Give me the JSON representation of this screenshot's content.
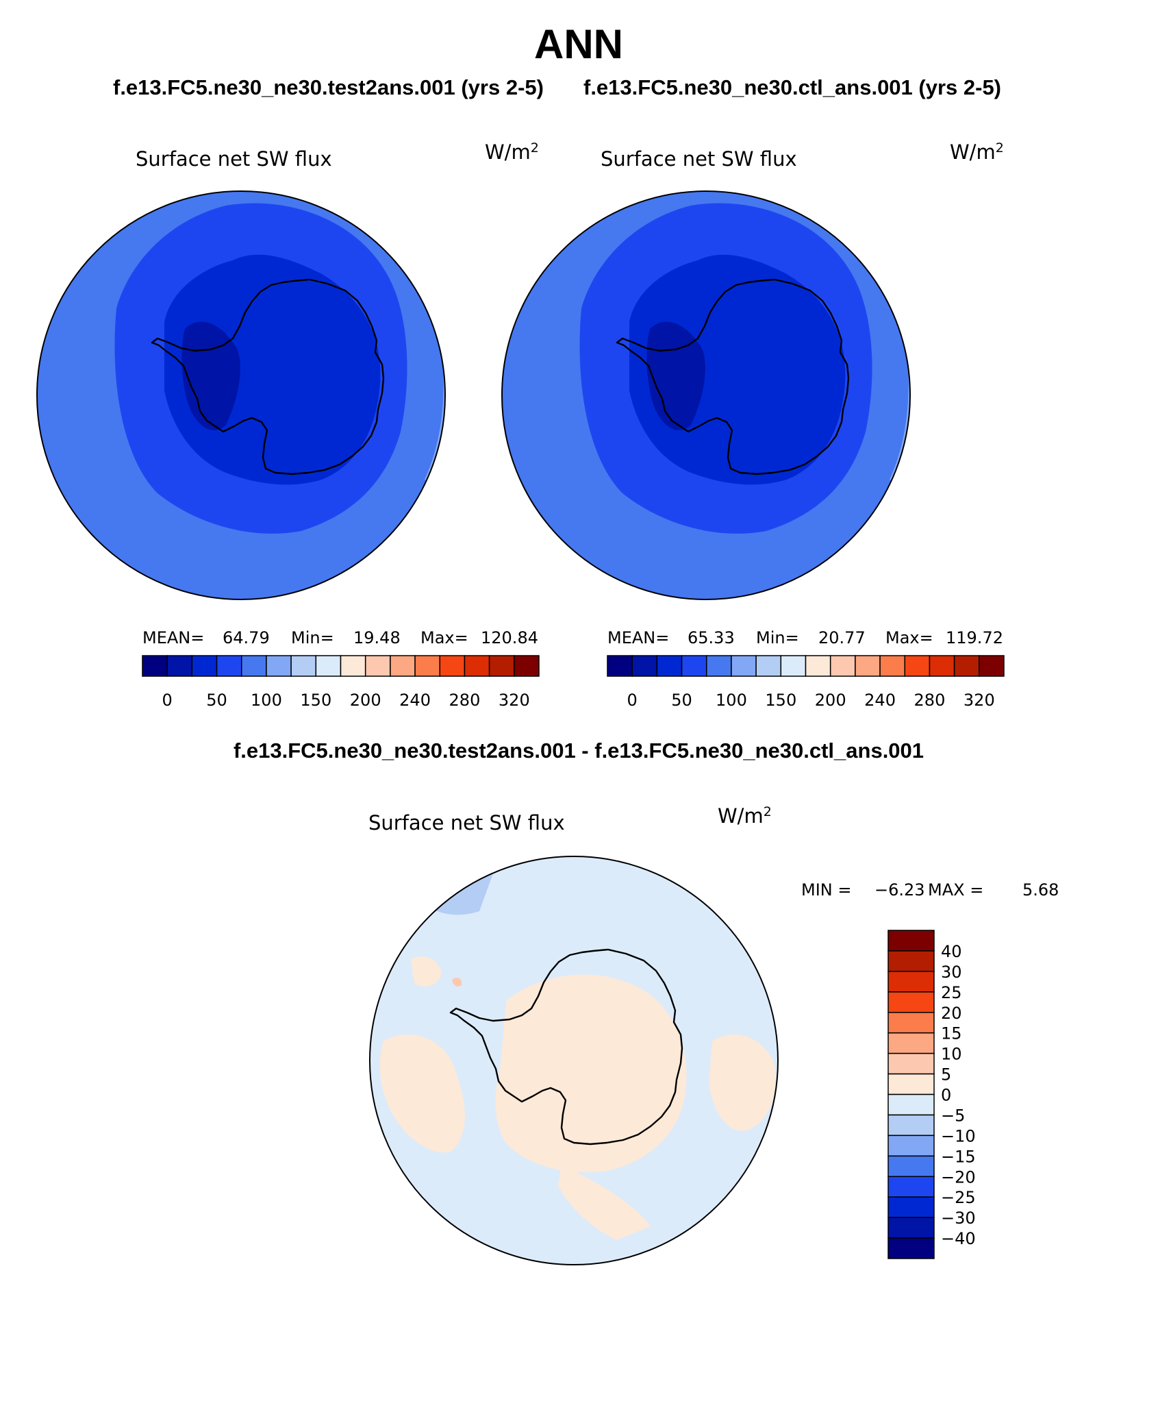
{
  "page": {
    "title": "ANN",
    "case_a": "f.e13.FC5.ne30_ne30.test2ans.001 (yrs 2-5)",
    "case_b": "f.e13.FC5.ne30_ne30.ctl_ans.001 (yrs 2-5)",
    "diff_title": "f.e13.FC5.ne30_ne30.test2ans.001 - f.e13.FC5.ne30_ne30.ctl_ans.001"
  },
  "panels": [
    {
      "id": "test",
      "variable": "Surface net SW flux",
      "units_base": "W/m",
      "units_exp": "2",
      "mean_label": "MEAN=",
      "mean": "64.79",
      "min_label": "Min=",
      "min": "19.48",
      "max_label": "Max=",
      "max": "120.84"
    },
    {
      "id": "control",
      "variable": "Surface net SW flux",
      "units_base": "W/m",
      "units_exp": "2",
      "mean_label": "MEAN=",
      "mean": "65.33",
      "min_label": "Min=",
      "min": "20.77",
      "max_label": "Max=",
      "max": "119.72"
    }
  ],
  "difference_panel": {
    "variable": "Surface net SW flux",
    "units_base": "W/m",
    "units_exp": "2",
    "min_label": "MIN =",
    "min": "−6.23",
    "max_label": "MAX =",
    "max": "5.68"
  },
  "colorbars": {
    "absolute": {
      "colors": [
        "#000080",
        "#0014a8",
        "#0028d2",
        "#1e46f0",
        "#4678f0",
        "#82a8f5",
        "#b4cdf5",
        "#dcebfa",
        "#fde9d8",
        "#fcc8b0",
        "#fca882",
        "#fa7d4b",
        "#f54614",
        "#dc2d05",
        "#b41e00",
        "#7d0000"
      ],
      "tick_labels": [
        "0",
        "50",
        "100",
        "150",
        "200",
        "240",
        "280",
        "320"
      ]
    },
    "difference": {
      "colors": [
        "#7d0000",
        "#b41e00",
        "#dc2d05",
        "#f54614",
        "#fa7d4b",
        "#fca882",
        "#fcc8b0",
        "#fde9d8",
        "#dcebfa",
        "#b4cdf5",
        "#82a8f5",
        "#4678f0",
        "#1e46f0",
        "#0028d2",
        "#0014a8",
        "#000080"
      ],
      "tick_labels": [
        "40",
        "30",
        "25",
        "20",
        "15",
        "10",
        "5",
        "0",
        "−5",
        "−10",
        "−15",
        "−20",
        "−25",
        "−30",
        "−40"
      ]
    }
  },
  "map_colors": {
    "ocean_outer": "#4678f0",
    "ocean_far": "#82a8f5",
    "ice_zone": "#1e46f0",
    "continent": "#0028d2",
    "continent_low": "#0014a8",
    "diff_neg": "#dcebfa",
    "diff_pos": "#fde9d8",
    "diff_neg2": "#b4cdf5",
    "diff_pos2": "#fcc8b0"
  }
}
